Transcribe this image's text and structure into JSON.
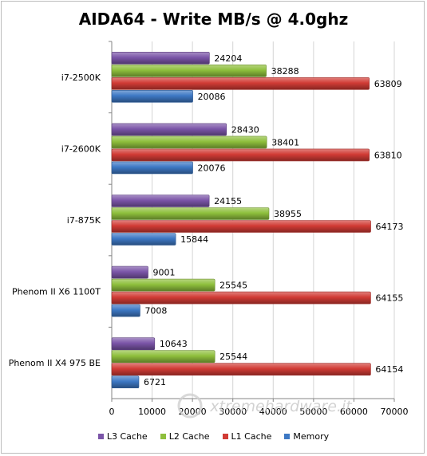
{
  "chart_data": {
    "type": "bar",
    "orientation": "horizontal",
    "title": "AIDA64 - Write MB/s @ 4.0ghz",
    "categories": [
      "i7-2500K",
      "i7-2600K",
      "i7-875K",
      "Phenom II X6 1100T",
      "Phenom II X4 975 BE"
    ],
    "series": [
      {
        "name": "L3 Cache",
        "color": "#7b55a8",
        "values": [
          24204,
          28430,
          24155,
          9001,
          10643
        ]
      },
      {
        "name": "L2 Cache",
        "color": "#8ebf3c",
        "values": [
          38288,
          38401,
          38955,
          25545,
          25544
        ]
      },
      {
        "name": "L1 Cache",
        "color": "#d13b35",
        "values": [
          63809,
          63810,
          64173,
          64155,
          64154
        ]
      },
      {
        "name": "Memory",
        "color": "#3d78c4",
        "values": [
          20086,
          20076,
          15844,
          7008,
          6721
        ]
      }
    ],
    "xlim": [
      0,
      70000
    ],
    "xticks": [
      "0",
      "10000",
      "20000",
      "30000",
      "40000",
      "50000",
      "60000",
      "70000"
    ],
    "grid": true,
    "legend_position": "bottom"
  },
  "watermark": "xtremehardware.it"
}
